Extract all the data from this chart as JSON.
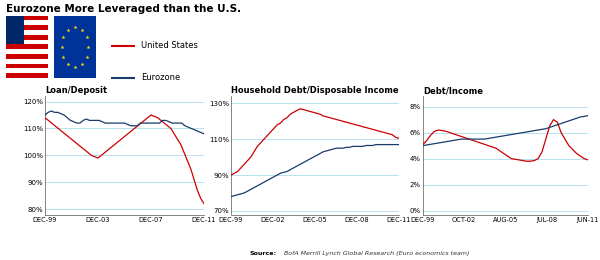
{
  "title": "Eurozone More Leveraged than the U.S.",
  "source_bold": "Source:",
  "source_rest": " BofA Merrill Lynch Global Research (Euro economics team)",
  "us_color": "#cc0000",
  "ez_color": "#1a3a6b",
  "grid_color": "#aaddee",
  "background_color": "#ffffff",
  "chart1": {
    "title": "Loan/Deposit",
    "yticks": [
      80,
      90,
      100,
      110,
      120
    ],
    "ylim": [
      78,
      122
    ],
    "xticks_labels": [
      "DEC-99",
      "DEC-03",
      "DEC-07",
      "DEC-11"
    ],
    "xticks_pos": [
      0,
      0.333,
      0.667,
      1.0
    ],
    "us_data": [
      114,
      113,
      112,
      111,
      110,
      109,
      108,
      107,
      106,
      105,
      104,
      103,
      102,
      101,
      100,
      99.5,
      99,
      100,
      101,
      102,
      103,
      104,
      105,
      106,
      107,
      108,
      109,
      110,
      111,
      112,
      113,
      114,
      115,
      114.5,
      114,
      113,
      112,
      111,
      110,
      108,
      106,
      104,
      101,
      98,
      95,
      91,
      87,
      84,
      82
    ],
    "ez_data": [
      115,
      116,
      116.5,
      116,
      116,
      115.5,
      115,
      114,
      113,
      112.5,
      112,
      112,
      113,
      113.5,
      113,
      113,
      113,
      113,
      112.5,
      112,
      112,
      112,
      112,
      112,
      112,
      112,
      111.5,
      111,
      111,
      111,
      112,
      112,
      112,
      112,
      112,
      112,
      112,
      113,
      113,
      112.5,
      112,
      112,
      112,
      112,
      111,
      110.5,
      110,
      109.5,
      109,
      108.5,
      108
    ]
  },
  "chart2": {
    "title": "Household Debt/Disposable Income",
    "yticks": [
      70,
      90,
      110,
      130
    ],
    "ylim": [
      68,
      134
    ],
    "xticks_labels": [
      "DEC-99",
      "DEC-02",
      "DEC-05",
      "DEC-08",
      "DEC-11"
    ],
    "xticks_pos": [
      0,
      0.25,
      0.5,
      0.75,
      1.0
    ],
    "us_data": [
      90,
      91,
      92,
      94,
      96,
      98,
      100,
      103,
      106,
      108,
      110,
      112,
      114,
      116,
      118,
      119,
      121,
      122,
      124,
      125,
      126,
      127,
      126.5,
      126,
      125.5,
      125,
      124.5,
      124,
      123,
      122.5,
      122,
      121.5,
      121,
      120.5,
      120,
      119.5,
      119,
      118.5,
      118,
      117.5,
      117,
      116.5,
      116,
      115.5,
      115,
      114.5,
      114,
      113.5,
      113,
      112.5,
      111,
      110.5
    ],
    "ez_data": [
      78,
      78.5,
      79,
      79.5,
      80,
      81,
      82,
      83,
      84,
      85,
      86,
      87,
      88,
      89,
      90,
      91,
      91.5,
      92,
      93,
      94,
      95,
      96,
      97,
      98,
      99,
      100,
      101,
      102,
      103,
      103.5,
      104,
      104.5,
      105,
      105,
      105,
      105.5,
      105.5,
      106,
      106,
      106,
      106,
      106.5,
      106.5,
      106.5,
      107,
      107,
      107,
      107,
      107,
      107,
      107,
      107
    ]
  },
  "chart3": {
    "title": "Debt/Income",
    "yticks": [
      0,
      2,
      4,
      6,
      8
    ],
    "ylim": [
      -0.3,
      8.8
    ],
    "xticks_labels": [
      "DEC-99",
      "OCT-02",
      "AUG-05",
      "JUL-08",
      "JUN-11"
    ],
    "xticks_pos": [
      0,
      0.25,
      0.5,
      0.75,
      1.0
    ],
    "us_data": [
      5.1,
      5.4,
      5.8,
      6.1,
      6.2,
      6.15,
      6.1,
      6.0,
      5.9,
      5.8,
      5.7,
      5.6,
      5.5,
      5.4,
      5.3,
      5.2,
      5.1,
      5.0,
      4.9,
      4.8,
      4.6,
      4.4,
      4.2,
      4.0,
      3.95,
      3.9,
      3.85,
      3.8,
      3.8,
      3.85,
      4.0,
      4.5,
      5.5,
      6.5,
      7.0,
      6.8,
      6.0,
      5.5,
      5.0,
      4.7,
      4.4,
      4.2,
      4.0,
      3.9
    ],
    "ez_data": [
      5.0,
      5.05,
      5.1,
      5.15,
      5.2,
      5.25,
      5.3,
      5.35,
      5.4,
      5.45,
      5.5,
      5.5,
      5.5,
      5.5,
      5.5,
      5.5,
      5.5,
      5.55,
      5.6,
      5.65,
      5.7,
      5.75,
      5.8,
      5.85,
      5.9,
      5.95,
      6.0,
      6.05,
      6.1,
      6.15,
      6.2,
      6.25,
      6.3,
      6.4,
      6.5,
      6.6,
      6.7,
      6.8,
      6.9,
      7.0,
      7.1,
      7.2,
      7.25,
      7.3
    ]
  }
}
